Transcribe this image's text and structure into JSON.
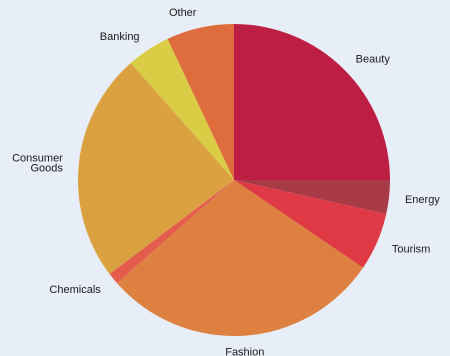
{
  "chart_data": {
    "type": "pie",
    "start_angle_deg": 0,
    "direction": "clockwise",
    "legend": "none",
    "slices": [
      {
        "label": "Beauty",
        "value": 25.0,
        "color": "#bd1e44"
      },
      {
        "label": "Energy",
        "value": 3.5,
        "color": "#a93a47"
      },
      {
        "label": "Tourism",
        "value": 6.0,
        "color": "#de3944"
      },
      {
        "label": "Fashion",
        "value": 29.0,
        "color": "#dd8040"
      },
      {
        "label": "Chemicals",
        "value": 1.2,
        "color": "#e35c4c"
      },
      {
        "label": "Consumer Goods",
        "value": 23.8,
        "color": "#dba040"
      },
      {
        "label": "Banking",
        "value": 4.5,
        "color": "#dacc44"
      },
      {
        "label": "Other",
        "value": 7.0,
        "color": "#de6c3c"
      }
    ]
  }
}
